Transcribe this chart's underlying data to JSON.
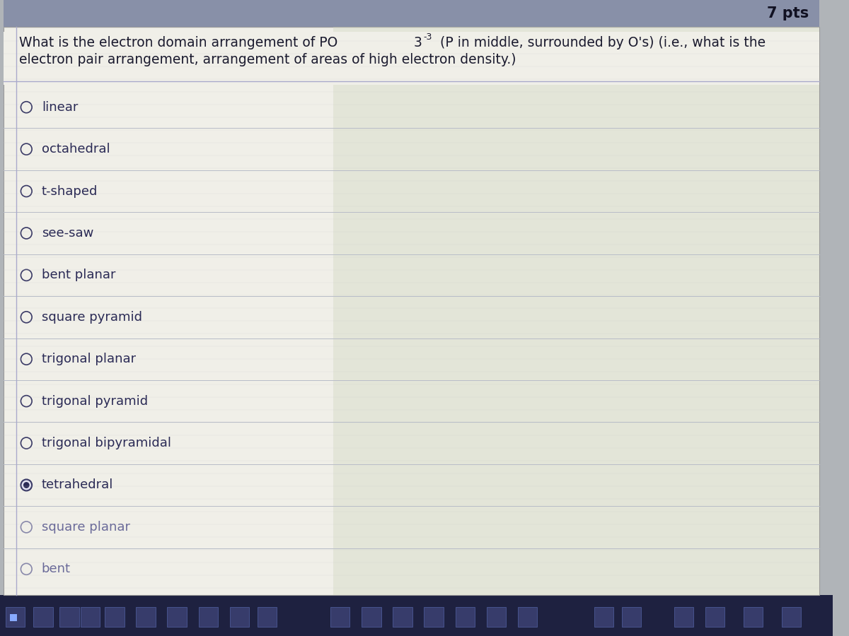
{
  "pts_text": "7 pts",
  "options": [
    {
      "label": "linear",
      "selected": false,
      "faded": false
    },
    {
      "label": "octahedral",
      "selected": false,
      "faded": false
    },
    {
      "label": "t-shaped",
      "selected": false,
      "faded": false
    },
    {
      "label": "see-saw",
      "selected": false,
      "faded": false
    },
    {
      "label": "bent planar",
      "selected": false,
      "faded": false
    },
    {
      "label": "square pyramid",
      "selected": false,
      "faded": false
    },
    {
      "label": "trigonal planar",
      "selected": false,
      "faded": false
    },
    {
      "label": "trigonal pyramid",
      "selected": false,
      "faded": false
    },
    {
      "label": "trigonal bipyramidal",
      "selected": false,
      "faded": false
    },
    {
      "label": "tetrahedral",
      "selected": true,
      "faded": false
    },
    {
      "label": "square planar",
      "selected": false,
      "faded": true
    },
    {
      "label": "bent",
      "selected": false,
      "faded": true
    }
  ],
  "bg_color": "#b0b4b8",
  "panel_bg": "#f0efe8",
  "panel_right_bg": "#cdd4bc",
  "top_bar_color": "#8890a8",
  "taskbar_color": "#1e2140",
  "text_color": "#1a1a2e",
  "option_text_color": "#2a2a55",
  "faded_text_color": "#6a6a99",
  "selected_fill_color": "#2a2a55",
  "line_color": "#b8bcc8",
  "pts_color": "#111122",
  "circle_color": "#3a3a66",
  "faded_circle_color": "#8888aa"
}
